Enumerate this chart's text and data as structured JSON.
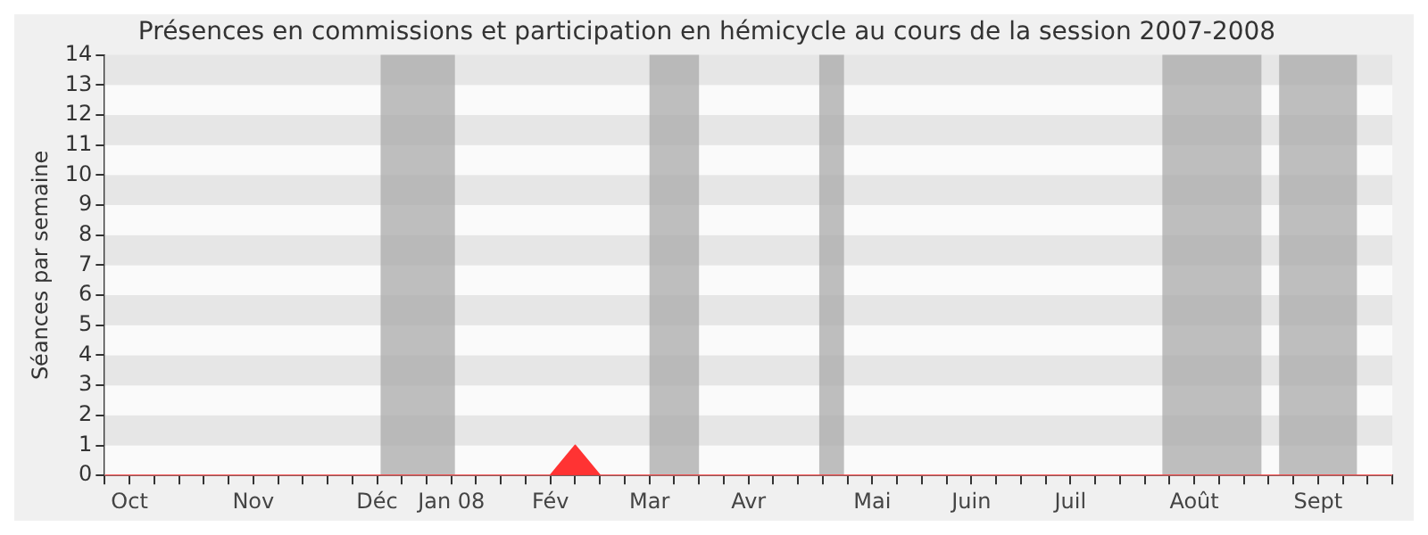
{
  "chart_data": {
    "type": "area",
    "title": "Présences en commissions et participation en hémicycle au cours de la session 2007-2008",
    "ylabel": "Séances par semaine",
    "x": [
      "2007-10-01",
      "2007-10-08",
      "2007-10-15",
      "2007-10-22",
      "2007-10-29",
      "2007-11-05",
      "2007-11-12",
      "2007-11-19",
      "2007-11-26",
      "2007-12-03",
      "2007-12-10",
      "2007-12-17",
      "2007-12-24",
      "2007-12-31",
      "2008-01-07",
      "2008-01-14",
      "2008-01-21",
      "2008-01-28",
      "2008-02-04",
      "2008-02-11",
      "2008-02-18",
      "2008-02-25",
      "2008-03-03",
      "2008-03-10",
      "2008-03-17",
      "2008-03-24",
      "2008-03-31",
      "2008-04-07",
      "2008-04-14",
      "2008-04-21",
      "2008-04-28",
      "2008-05-05",
      "2008-05-12",
      "2008-05-19",
      "2008-05-26",
      "2008-06-02",
      "2008-06-09",
      "2008-06-16",
      "2008-06-23",
      "2008-06-30",
      "2008-07-07",
      "2008-07-14",
      "2008-07-21",
      "2008-07-28",
      "2008-08-04",
      "2008-08-11",
      "2008-08-18",
      "2008-08-25",
      "2008-09-01",
      "2008-09-08",
      "2008-09-15",
      "2008-09-22",
      "2008-09-29"
    ],
    "series": [
      {
        "color": "#ff3333",
        "values": [
          0,
          0,
          0,
          0,
          0,
          0,
          0,
          0,
          0,
          0,
          0,
          0,
          0,
          0,
          0,
          0,
          0,
          0,
          0,
          1,
          0,
          0,
          0,
          0,
          0,
          0,
          0,
          0,
          0,
          0,
          0,
          0,
          0,
          0,
          0,
          0,
          0,
          0,
          0,
          0,
          0,
          0,
          0,
          0,
          0,
          0,
          0,
          0,
          0,
          0,
          0,
          0,
          0
        ]
      }
    ],
    "xlim": [
      "2007-10-01",
      "2008-09-29"
    ],
    "xticks": [
      {
        "value": "2007-10-01",
        "label": null
      },
      {
        "value": "2007-10-08",
        "label": "Oct"
      },
      {
        "value": "2007-10-15",
        "label": null
      },
      {
        "value": "2007-10-22",
        "label": null
      },
      {
        "value": "2007-10-29",
        "label": null
      },
      {
        "value": "2007-11-05",
        "label": null
      },
      {
        "value": "2007-11-12",
        "label": "Nov"
      },
      {
        "value": "2007-11-19",
        "label": null
      },
      {
        "value": "2007-11-26",
        "label": null
      },
      {
        "value": "2007-12-03",
        "label": null
      },
      {
        "value": "2007-12-10",
        "label": null
      },
      {
        "value": "2007-12-17",
        "label": "Déc"
      },
      {
        "value": "2007-12-24",
        "label": null
      },
      {
        "value": "2007-12-31",
        "label": null
      },
      {
        "value": "2008-01-07",
        "label": "Jan 08"
      },
      {
        "value": "2008-01-14",
        "label": null
      },
      {
        "value": "2008-01-21",
        "label": null
      },
      {
        "value": "2008-01-28",
        "label": null
      },
      {
        "value": "2008-02-04",
        "label": "Fév"
      },
      {
        "value": "2008-02-11",
        "label": null
      },
      {
        "value": "2008-02-18",
        "label": null
      },
      {
        "value": "2008-02-25",
        "label": null
      },
      {
        "value": "2008-03-03",
        "label": "Mar"
      },
      {
        "value": "2008-03-10",
        "label": null
      },
      {
        "value": "2008-03-17",
        "label": null
      },
      {
        "value": "2008-03-24",
        "label": null
      },
      {
        "value": "2008-03-31",
        "label": "Avr"
      },
      {
        "value": "2008-04-07",
        "label": null
      },
      {
        "value": "2008-04-14",
        "label": null
      },
      {
        "value": "2008-04-21",
        "label": null
      },
      {
        "value": "2008-04-28",
        "label": null
      },
      {
        "value": "2008-05-05",
        "label": "Mai"
      },
      {
        "value": "2008-05-12",
        "label": null
      },
      {
        "value": "2008-05-19",
        "label": null
      },
      {
        "value": "2008-05-26",
        "label": null
      },
      {
        "value": "2008-06-02",
        "label": "Juin"
      },
      {
        "value": "2008-06-09",
        "label": null
      },
      {
        "value": "2008-06-16",
        "label": null
      },
      {
        "value": "2008-06-23",
        "label": null
      },
      {
        "value": "2008-06-30",
        "label": "Juil"
      },
      {
        "value": "2008-07-07",
        "label": null
      },
      {
        "value": "2008-07-14",
        "label": null
      },
      {
        "value": "2008-07-21",
        "label": null
      },
      {
        "value": "2008-07-28",
        "label": null
      },
      {
        "value": "2008-08-04",
        "label": "Août"
      },
      {
        "value": "2008-08-11",
        "label": null
      },
      {
        "value": "2008-08-18",
        "label": null
      },
      {
        "value": "2008-08-25",
        "label": null
      },
      {
        "value": "2008-09-01",
        "label": null
      },
      {
        "value": "2008-09-08",
        "label": "Sept"
      },
      {
        "value": "2008-09-15",
        "label": null
      },
      {
        "value": "2008-09-22",
        "label": null
      },
      {
        "value": "2008-09-29",
        "label": null
      }
    ],
    "ylim": [
      0,
      14
    ],
    "yticks": [
      0,
      1,
      2,
      3,
      4,
      5,
      6,
      7,
      8,
      9,
      10,
      11,
      12,
      13,
      14
    ],
    "bands": [
      {
        "axis": "x",
        "from": "2007-12-18",
        "to": "2008-01-08",
        "color": "#aaaaaa"
      },
      {
        "axis": "x",
        "from": "2008-03-03",
        "to": "2008-03-17",
        "color": "#aaaaaa"
      },
      {
        "axis": "x",
        "from": "2008-04-20",
        "to": "2008-04-27",
        "color": "#aaaaaa"
      },
      {
        "axis": "x",
        "from": "2008-07-26",
        "to": "2008-08-23",
        "color": "#aaaaaa"
      },
      {
        "axis": "x",
        "from": "2008-08-28",
        "to": "2008-09-19",
        "color": "#aaaaaa"
      }
    ]
  }
}
